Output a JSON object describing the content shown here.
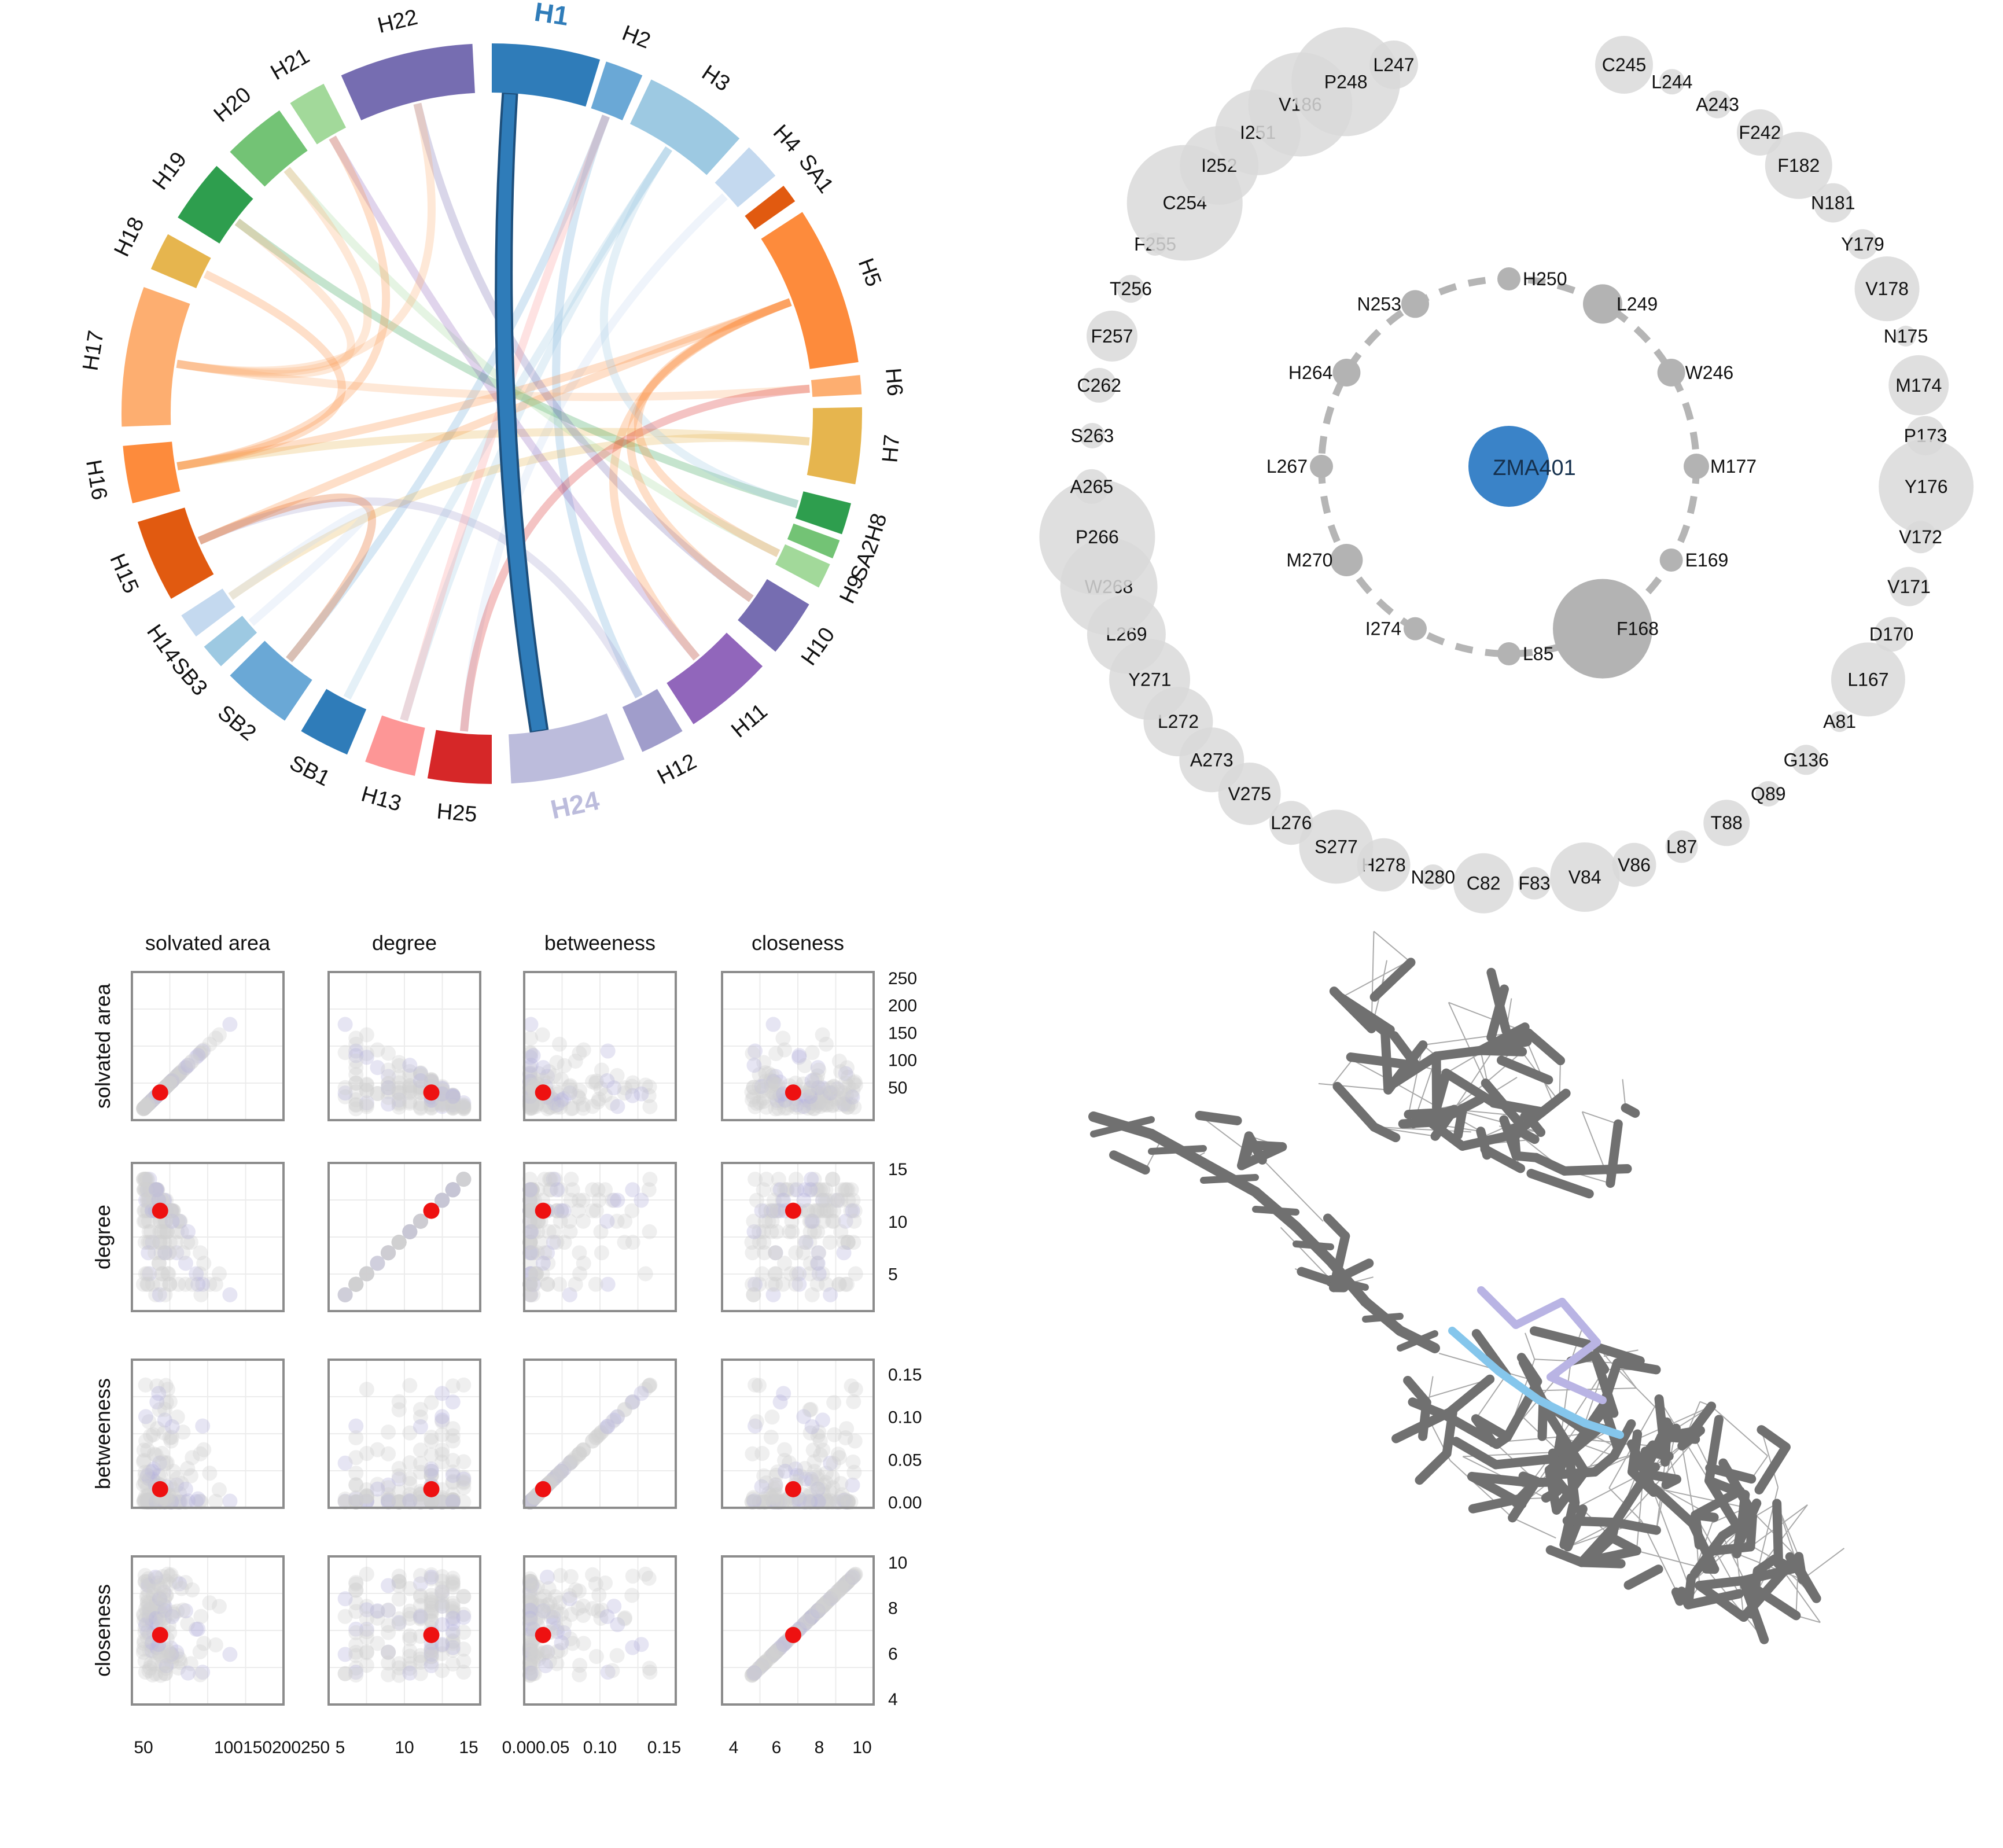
{
  "colors": {
    "ring_node": "#d9d9d9",
    "inner_node": "#b3b3b3",
    "ligand": "#3a83c8",
    "ligand_label": "#15304d",
    "pair_bg": "#e3e3e3",
    "pair_highlight": "#b7b4dd",
    "pair_red": "#ee1111",
    "mesh": "#707070",
    "mesh_light": "#a9a9a9",
    "mesh_lavender": "#b9b4e4",
    "mesh_blue": "#85c6ec"
  },
  "chord": {
    "sectors": [
      {
        "label": "H1",
        "color": "#2f7cb9",
        "highlight": true
      },
      {
        "label": "H2",
        "color": "#6aa8d6"
      },
      {
        "label": "H3",
        "color": "#9dc9e2"
      },
      {
        "label": "H4",
        "color": "#c4d9ef"
      },
      {
        "label": "SA1",
        "color": "#e15a10"
      },
      {
        "label": "H5",
        "color": "#fd8b3c"
      },
      {
        "label": "H6",
        "color": "#fdae70"
      },
      {
        "label": "H7",
        "color": "#e6b54e"
      },
      {
        "label": "H8",
        "color": "#2e9e4e"
      },
      {
        "label": "SA2",
        "color": "#73c375"
      },
      {
        "label": "H9",
        "color": "#a2d99a"
      },
      {
        "label": "H10",
        "color": "#766db1"
      },
      {
        "label": "H11",
        "color": "#9166bb"
      },
      {
        "label": "H12",
        "color": "#a09dcb"
      },
      {
        "label": "H24",
        "color": "#bcbcdc",
        "highlight": true
      },
      {
        "label": "H25",
        "color": "#d62728"
      },
      {
        "label": "H13",
        "color": "#fd9696"
      },
      {
        "label": "SB1",
        "color": "#2f7cb9"
      },
      {
        "label": "SB2",
        "color": "#6aa8d6"
      },
      {
        "label": "SB3",
        "color": "#9dc9e2"
      },
      {
        "label": "H14",
        "color": "#c4d9ef"
      },
      {
        "label": "H15",
        "color": "#e15a10"
      },
      {
        "label": "H16",
        "color": "#fd8b3c"
      },
      {
        "label": "H17",
        "color": "#fdae70"
      },
      {
        "label": "H18",
        "color": "#e6b54e"
      },
      {
        "label": "H19",
        "color": "#2e9e4e"
      },
      {
        "label": "H20",
        "color": "#73c375"
      },
      {
        "label": "H21",
        "color": "#a2d99a"
      },
      {
        "label": "H22",
        "color": "#766db1"
      }
    ],
    "highlight_link": [
      "H1",
      "H24"
    ]
  },
  "ring_network": {
    "center": "ZMA401",
    "inner": [
      "H250",
      "L249",
      "W246",
      "M177",
      "E169",
      "F168",
      "L85",
      "I274",
      "M270",
      "L267",
      "H264",
      "N253"
    ],
    "outer": [
      "C245",
      "L244",
      "A243",
      "F242",
      "F182",
      "N181",
      "Y179",
      "V178",
      "N175",
      "M174",
      "P173",
      "Y176",
      "V172",
      "V171",
      "D170",
      "L167",
      "A81",
      "G136",
      "Q89",
      "T88",
      "L87",
      "V86",
      "V84",
      "F83",
      "C82",
      "N280",
      "H278",
      "S277",
      "L276",
      "V275",
      "A273",
      "L272",
      "Y271",
      "L269",
      "W268",
      "P266",
      "A265",
      "S263",
      "C262",
      "F257",
      "T256",
      "F255",
      "C254",
      "I252",
      "I251",
      "V186",
      "P248",
      "L247"
    ]
  },
  "pairs_plot": {
    "variables": [
      "solvated area",
      "degree",
      "betweeness",
      "closeness"
    ],
    "ticks": {
      "solvated area": [
        "50",
        "100",
        "150",
        "200",
        "250"
      ],
      "degree": [
        "5",
        "10",
        "15"
      ],
      "betweeness": [
        "0.00",
        "0.05",
        "0.10",
        "0.15"
      ],
      "closeness": [
        "4",
        "6",
        "8",
        "10"
      ]
    },
    "bottom_ticks": {
      "solvated area": [
        "50",
        "100150200250"
      ],
      "degree": [
        "5",
        "10",
        "15"
      ],
      "betweeness": [
        "0.000.05",
        "0.10",
        "0.15"
      ],
      "closeness": [
        "4",
        "6",
        "8",
        "10"
      ]
    },
    "highlight_point": {
      "solvated area": 40,
      "degree": 11,
      "betweeness": 0.015,
      "closeness": 6.8
    }
  }
}
